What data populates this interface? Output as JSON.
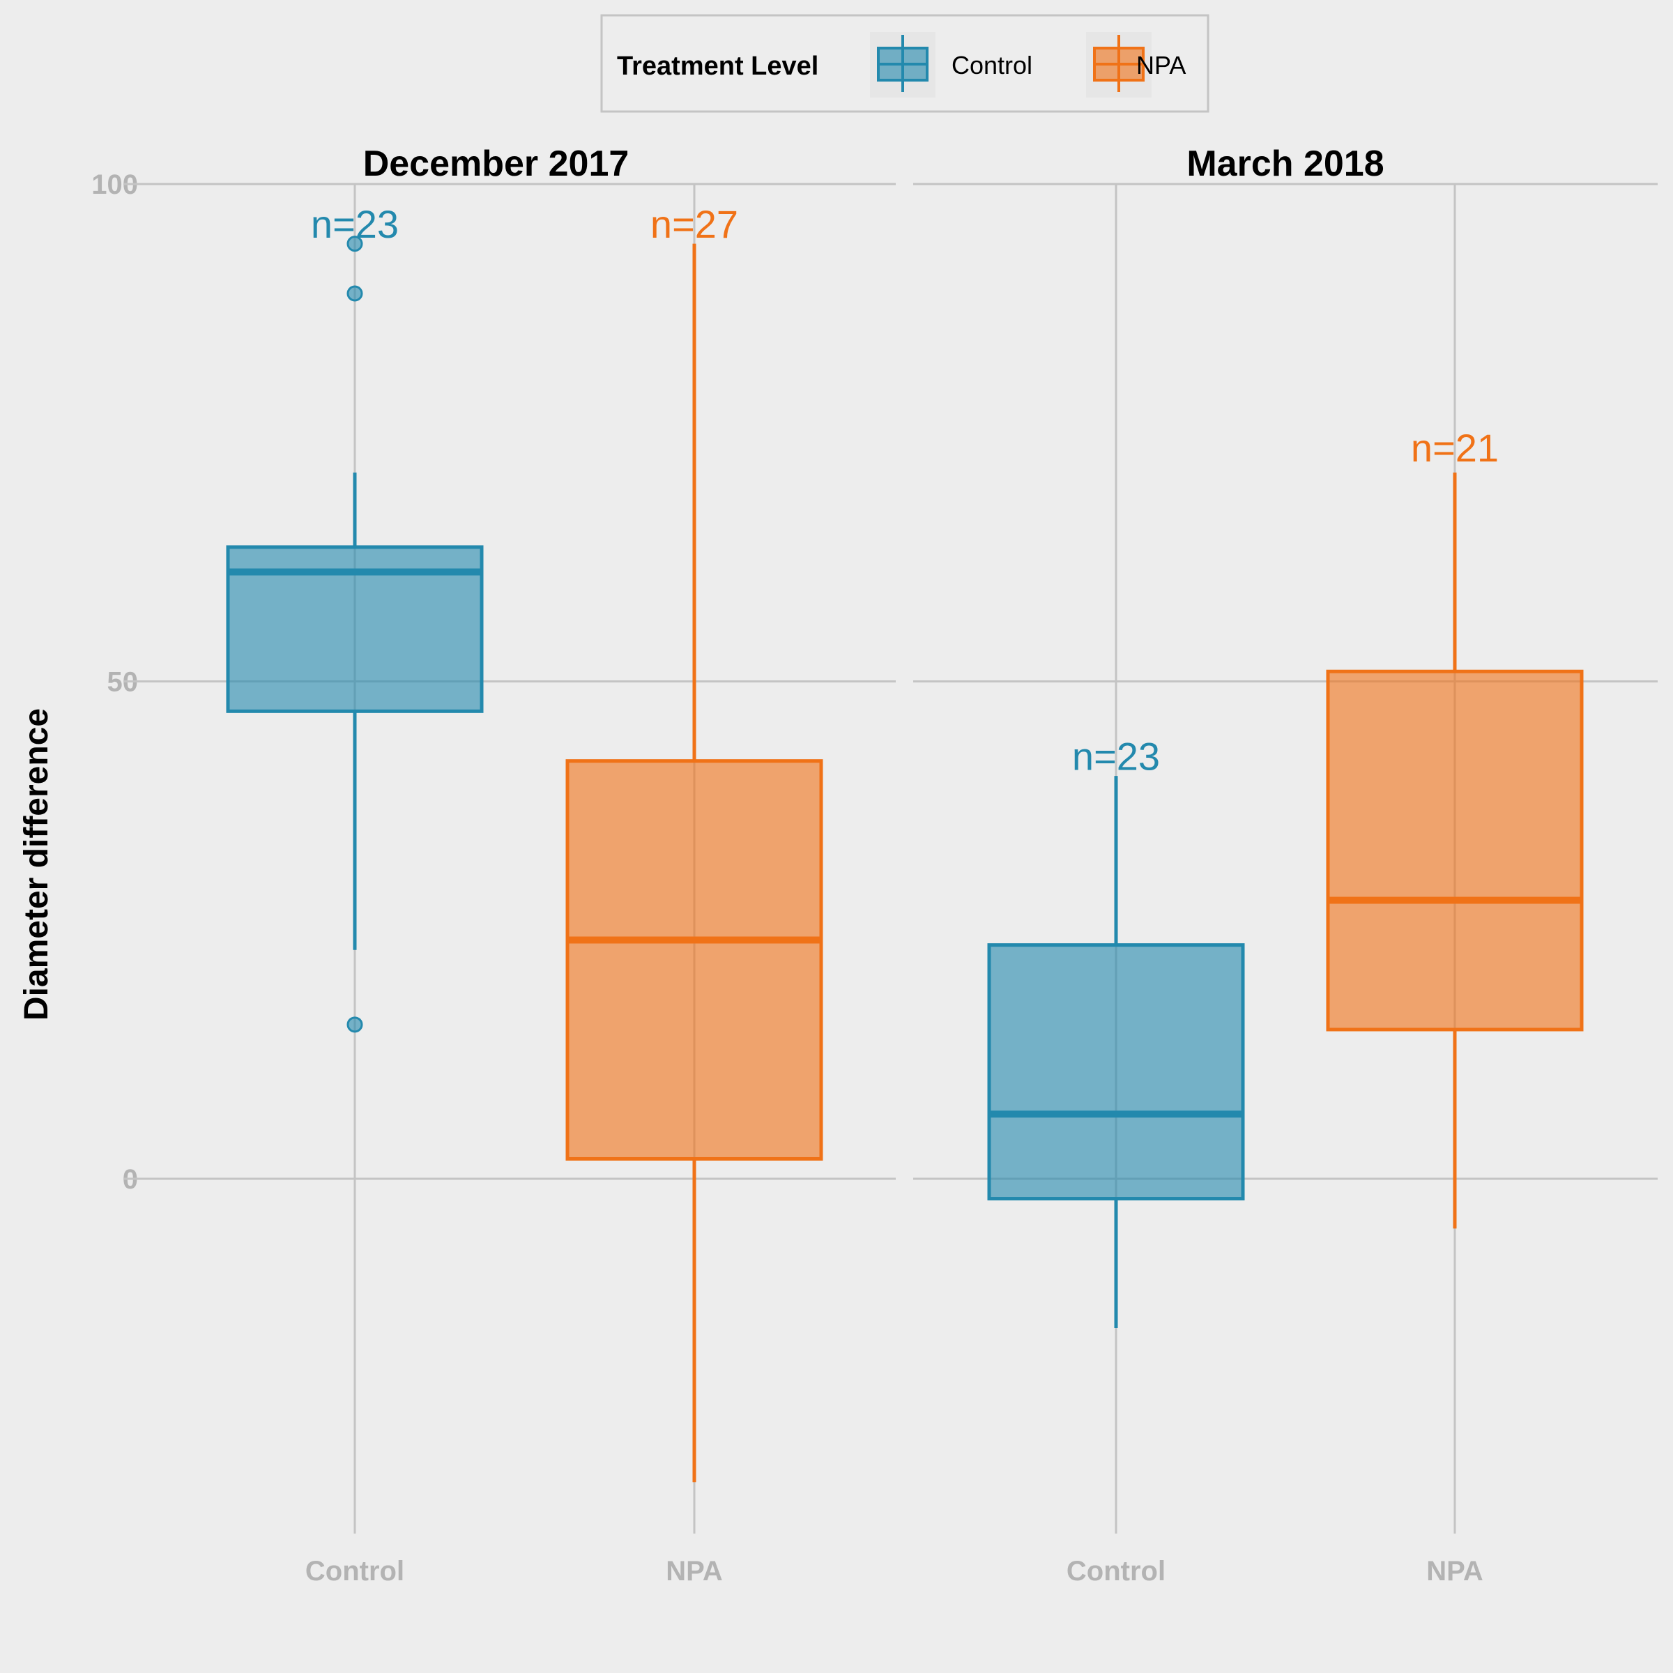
{
  "chart_data": {
    "type": "boxplot",
    "ylabel": "Diameter difference",
    "ylim": [
      -35,
      102
    ],
    "yticks": [
      0,
      50,
      100
    ],
    "categories": [
      "Control",
      "NPA"
    ],
    "legend": {
      "title": "Treatment Level",
      "placement": "top",
      "entries": [
        {
          "name": "Control",
          "color": "#2389ad"
        },
        {
          "name": "NPA",
          "color": "#f07217"
        }
      ]
    },
    "colors": {
      "Control": "#2389ad",
      "NPA": "#f07217"
    },
    "panels": [
      {
        "title": "December 2017",
        "boxes": [
          {
            "group": "Control",
            "n_label": "n=23",
            "n_label_y": 96,
            "whisker_low": 23,
            "q1": 47,
            "median": 61,
            "q3": 63.5,
            "whisker_high": 71,
            "outliers": [
              94,
              89,
              15.5
            ]
          },
          {
            "group": "NPA",
            "n_label": "n=27",
            "n_label_y": 96,
            "whisker_low": -30.5,
            "q1": 2,
            "median": 24,
            "q3": 42,
            "whisker_high": 94,
            "outliers": []
          }
        ]
      },
      {
        "title": "March 2018",
        "boxes": [
          {
            "group": "Control",
            "n_label": "n=23",
            "n_label_y": 42.5,
            "whisker_low": -15,
            "q1": -2,
            "median": 6.5,
            "q3": 23.5,
            "whisker_high": 40.5,
            "outliers": []
          },
          {
            "group": "NPA",
            "n_label": "n=21",
            "n_label_y": 73.5,
            "whisker_low": -5,
            "q1": 15,
            "median": 28,
            "q3": 51,
            "whisker_high": 71,
            "outliers": []
          }
        ]
      }
    ]
  }
}
